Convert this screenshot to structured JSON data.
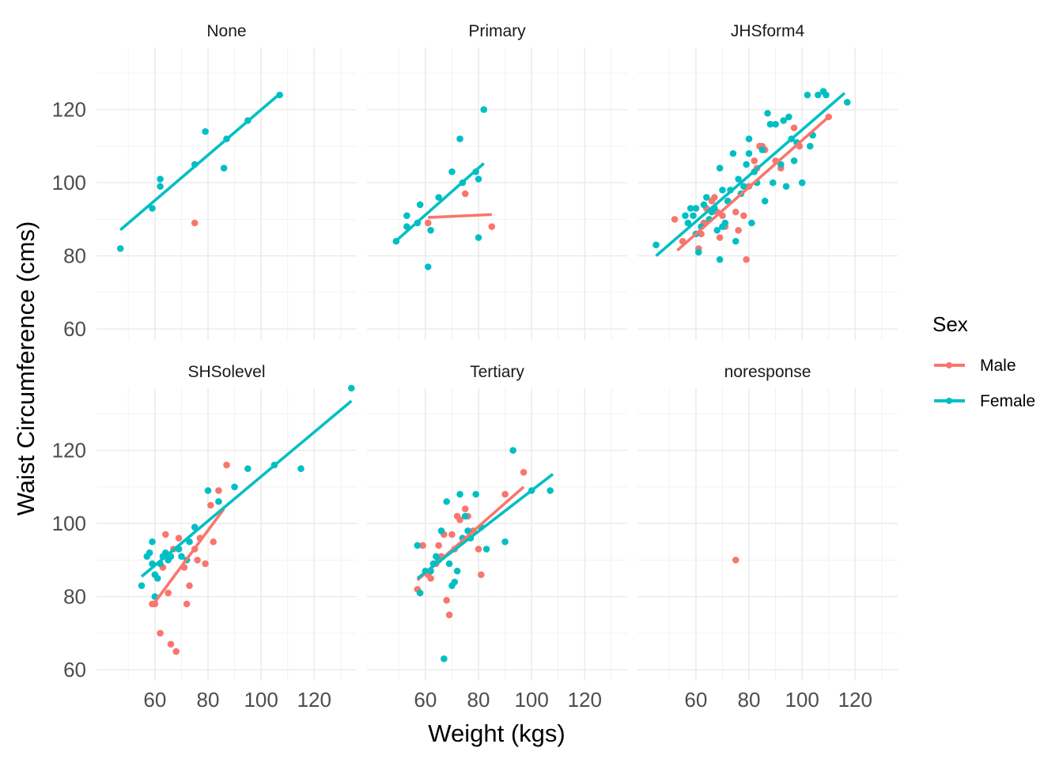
{
  "chart_data": {
    "type": "scatter",
    "xlabel": "Weight (kgs)",
    "ylabel": "Waist Circumference (cms)",
    "xlim": [
      38,
      136
    ],
    "ylim": [
      57,
      137
    ],
    "x_ticks": [
      60,
      80,
      100,
      120
    ],
    "y_ticks": [
      60,
      80,
      100,
      120
    ],
    "grid": true,
    "legend": {
      "title": "Sex",
      "position": "right",
      "entries": [
        {
          "label": "Male",
          "color": "#F8766D"
        },
        {
          "label": "Female",
          "color": "#00BFC4"
        }
      ]
    },
    "panels": [
      {
        "title": "None",
        "series": [
          {
            "name": "Male",
            "color": "#F8766D",
            "points": [
              [
                75,
                89
              ]
            ],
            "fit": null
          },
          {
            "name": "Female",
            "color": "#00BFC4",
            "points": [
              [
                47,
                82
              ],
              [
                59,
                93
              ],
              [
                62,
                101
              ],
              [
                62,
                99
              ],
              [
                75,
                105
              ],
              [
                79,
                114
              ],
              [
                87,
                112
              ],
              [
                86,
                104
              ],
              [
                95,
                117
              ],
              [
                107,
                124
              ]
            ],
            "fit": [
              [
                47,
                87.1
              ],
              [
                107,
                124.3
              ]
            ]
          }
        ]
      },
      {
        "title": "Primary",
        "series": [
          {
            "name": "Male",
            "color": "#F8766D",
            "points": [
              [
                61,
                89
              ],
              [
                75,
                97
              ],
              [
                85,
                88
              ]
            ],
            "fit": [
              [
                61,
                90.5
              ],
              [
                85,
                91.3
              ]
            ]
          },
          {
            "name": "Female",
            "color": "#00BFC4",
            "points": [
              [
                49,
                84
              ],
              [
                53,
                88
              ],
              [
                53,
                91
              ],
              [
                57,
                89
              ],
              [
                58,
                94
              ],
              [
                61,
                77
              ],
              [
                62,
                87
              ],
              [
                65,
                96
              ],
              [
                70,
                103
              ],
              [
                73,
                112
              ],
              [
                74,
                100
              ],
              [
                79,
                103
              ],
              [
                80,
                101
              ],
              [
                80,
                85
              ],
              [
                82,
                120
              ]
            ],
            "fit": [
              [
                48,
                83.5
              ],
              [
                82,
                105.3
              ]
            ]
          }
        ]
      },
      {
        "title": "JHSform4",
        "series": [
          {
            "name": "Male",
            "color": "#F8766D",
            "points": [
              [
                52,
                90
              ],
              [
                55,
                84
              ],
              [
                60,
                93
              ],
              [
                61,
                82
              ],
              [
                62,
                86
              ],
              [
                63,
                89
              ],
              [
                64,
                93
              ],
              [
                66,
                95
              ],
              [
                67,
                96
              ],
              [
                68,
                92
              ],
              [
                69,
                85
              ],
              [
                70,
                91
              ],
              [
                71,
                88
              ],
              [
                72,
                95
              ],
              [
                75,
                92
              ],
              [
                76,
                87
              ],
              [
                78,
                91
              ],
              [
                79,
                79
              ],
              [
                80,
                99
              ],
              [
                82,
                106
              ],
              [
                83,
                104
              ],
              [
                84,
                110
              ],
              [
                85,
                110
              ],
              [
                86,
                109
              ],
              [
                90,
                106
              ],
              [
                92,
                104
              ],
              [
                97,
                115
              ],
              [
                99,
                110
              ],
              [
                110,
                118
              ]
            ],
            "fit": [
              [
                53,
                81.5
              ],
              [
                110,
                118
              ]
            ]
          },
          {
            "name": "Female",
            "color": "#00BFC4",
            "points": [
              [
                45,
                83
              ],
              [
                56,
                91
              ],
              [
                57,
                89
              ],
              [
                58,
                93
              ],
              [
                59,
                91
              ],
              [
                60,
                86
              ],
              [
                60,
                93
              ],
              [
                61,
                81
              ],
              [
                62,
                88
              ],
              [
                63,
                94
              ],
              [
                64,
                96
              ],
              [
                65,
                90
              ],
              [
                66,
                92
              ],
              [
                67,
                93
              ],
              [
                68,
                87
              ],
              [
                69,
                79
              ],
              [
                69,
                104
              ],
              [
                70,
                98
              ],
              [
                70,
                88
              ],
              [
                71,
                89
              ],
              [
                72,
                95
              ],
              [
                73,
                98
              ],
              [
                74,
                108
              ],
              [
                75,
                84
              ],
              [
                76,
                101
              ],
              [
                77,
                97
              ],
              [
                78,
                99
              ],
              [
                79,
                105
              ],
              [
                80,
                108
              ],
              [
                80,
                112
              ],
              [
                81,
                89
              ],
              [
                82,
                103
              ],
              [
                83,
                100
              ],
              [
                85,
                109
              ],
              [
                86,
                95
              ],
              [
                87,
                119
              ],
              [
                88,
                116
              ],
              [
                89,
                100
              ],
              [
                90,
                116
              ],
              [
                92,
                105
              ],
              [
                93,
                117
              ],
              [
                94,
                99
              ],
              [
                95,
                118
              ],
              [
                96,
                112
              ],
              [
                97,
                106
              ],
              [
                98,
                111
              ],
              [
                100,
                100
              ],
              [
                102,
                124
              ],
              [
                103,
                110
              ],
              [
                104,
                113
              ],
              [
                106,
                124
              ],
              [
                108,
                125
              ],
              [
                109,
                124
              ],
              [
                117,
                122
              ]
            ],
            "fit": [
              [
                45,
                80
              ],
              [
                116,
                124.5
              ]
            ]
          }
        ]
      },
      {
        "title": "SHSolevel",
        "series": [
          {
            "name": "Male",
            "color": "#F8766D",
            "points": [
              [
                59,
                78
              ],
              [
                60,
                78
              ],
              [
                62,
                70
              ],
              [
                63,
                88
              ],
              [
                64,
                97
              ],
              [
                65,
                81
              ],
              [
                66,
                67
              ],
              [
                67,
                93
              ],
              [
                68,
                65
              ],
              [
                69,
                96
              ],
              [
                71,
                88
              ],
              [
                72,
                78
              ],
              [
                73,
                83
              ],
              [
                75,
                93
              ],
              [
                76,
                90
              ],
              [
                77,
                96
              ],
              [
                79,
                89
              ],
              [
                81,
                105
              ],
              [
                82,
                95
              ],
              [
                84,
                109
              ],
              [
                87,
                116
              ]
            ],
            "fit": [
              [
                59,
                77.5
              ],
              [
                86,
                104
              ]
            ]
          },
          {
            "name": "Female",
            "color": "#00BFC4",
            "points": [
              [
                55,
                83
              ],
              [
                57,
                91
              ],
              [
                58,
                92
              ],
              [
                59,
                95
              ],
              [
                59,
                89
              ],
              [
                60,
                86
              ],
              [
                60,
                80
              ],
              [
                61,
                85
              ],
              [
                62,
                89
              ],
              [
                63,
                91
              ],
              [
                64,
                92
              ],
              [
                65,
                90
              ],
              [
                66,
                91
              ],
              [
                69,
                93
              ],
              [
                70,
                91
              ],
              [
                72,
                90
              ],
              [
                73,
                95
              ],
              [
                75,
                99
              ],
              [
                80,
                109
              ],
              [
                84,
                106
              ],
              [
                90,
                110
              ],
              [
                95,
                115
              ],
              [
                105,
                116
              ],
              [
                115,
                115
              ],
              [
                134,
                137
              ]
            ],
            "fit": [
              [
                55,
                85.5
              ],
              [
                134,
                133.5
              ]
            ]
          }
        ]
      },
      {
        "title": "Tertiary",
        "series": [
          {
            "name": "Male",
            "color": "#F8766D",
            "points": [
              [
                57,
                82
              ],
              [
                59,
                94
              ],
              [
                61,
                86
              ],
              [
                62,
                85
              ],
              [
                64,
                89
              ],
              [
                65,
                94
              ],
              [
                66,
                91
              ],
              [
                67,
                97
              ],
              [
                68,
                79
              ],
              [
                69,
                75
              ],
              [
                70,
                97
              ],
              [
                71,
                93
              ],
              [
                72,
                102
              ],
              [
                73,
                101
              ],
              [
                75,
                104
              ],
              [
                76,
                102
              ],
              [
                78,
                98
              ],
              [
                80,
                93
              ],
              [
                81,
                86
              ],
              [
                90,
                108
              ],
              [
                97,
                114
              ]
            ],
            "fit": [
              [
                57,
                84.5
              ],
              [
                97,
                110
              ]
            ]
          },
          {
            "name": "Female",
            "color": "#00BFC4",
            "points": [
              [
                57,
                94
              ],
              [
                58,
                81
              ],
              [
                60,
                87
              ],
              [
                62,
                87
              ],
              [
                63,
                89
              ],
              [
                64,
                91
              ],
              [
                65,
                90
              ],
              [
                66,
                98
              ],
              [
                67,
                63
              ],
              [
                68,
                106
              ],
              [
                69,
                89
              ],
              [
                70,
                83
              ],
              [
                71,
                84
              ],
              [
                72,
                87
              ],
              [
                73,
                108
              ],
              [
                74,
                96
              ],
              [
                75,
                102
              ],
              [
                76,
                98
              ],
              [
                77,
                96
              ],
              [
                79,
                108
              ],
              [
                81,
                99
              ],
              [
                83,
                93
              ],
              [
                90,
                95
              ],
              [
                93,
                120
              ],
              [
                100,
                109
              ],
              [
                107,
                109
              ]
            ],
            "fit": [
              [
                57,
                85
              ],
              [
                108,
                113.5
              ]
            ]
          }
        ]
      },
      {
        "title": "noresponse",
        "series": [
          {
            "name": "Male",
            "color": "#F8766D",
            "points": [
              [
                75,
                90
              ]
            ],
            "fit": null
          },
          {
            "name": "Female",
            "color": "#00BFC4",
            "points": [],
            "fit": null
          }
        ]
      }
    ]
  }
}
